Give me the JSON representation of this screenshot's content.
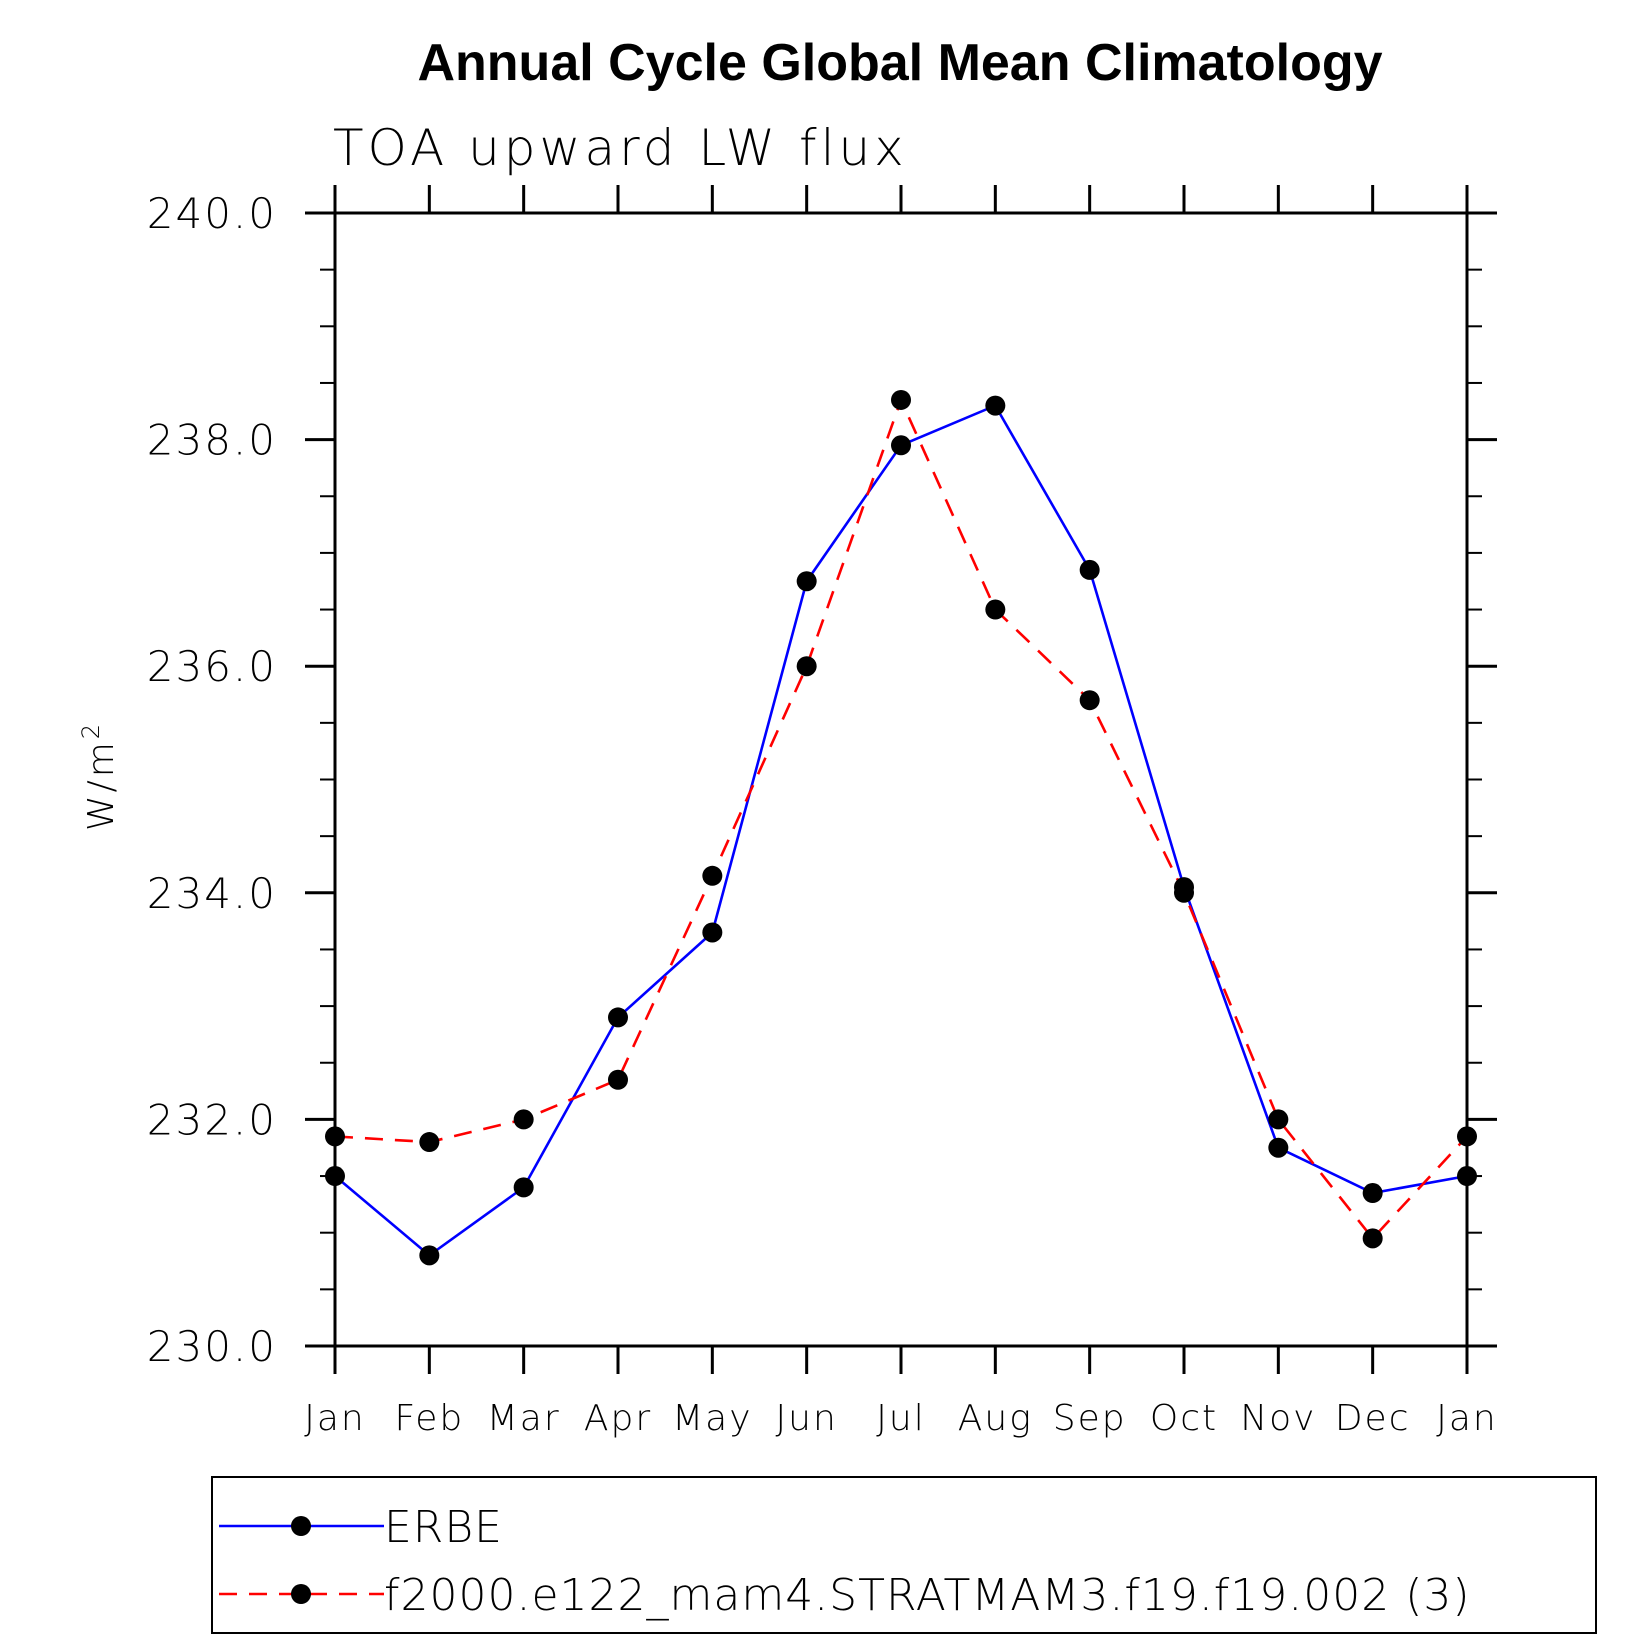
{
  "chart_data": {
    "type": "line",
    "title": "Annual Cycle Global Mean Climatology",
    "subtitle": "TOA upward LW flux",
    "ylabel_base": "W/m",
    "ylabel_sup": "2",
    "ylim": [
      230.0,
      240.0
    ],
    "yticks": [
      "230.0",
      "232.0",
      "234.0",
      "236.0",
      "238.0",
      "240.0"
    ],
    "categories": [
      "Jan",
      "Feb",
      "Mar",
      "Apr",
      "May",
      "Jun",
      "Jul",
      "Aug",
      "Sep",
      "Oct",
      "Nov",
      "Dec",
      "Jan"
    ],
    "series": [
      {
        "name": "ERBE",
        "color": "#0000ff",
        "dash": "solid",
        "values": [
          231.5,
          230.8,
          231.4,
          232.9,
          233.65,
          236.75,
          237.95,
          238.3,
          236.85,
          234.05,
          231.75,
          231.35,
          231.5
        ]
      },
      {
        "name": "f2000.e122_mam4.STRATMAM3.f19.f19.002 (3)",
        "color": "#ff0000",
        "dash": "dashed",
        "values": [
          231.85,
          231.8,
          232.0,
          232.35,
          234.15,
          236.0,
          238.35,
          236.5,
          235.7,
          234.0,
          232.0,
          230.95,
          231.85
        ]
      }
    ],
    "legend_position": "bottom",
    "grid": false
  }
}
